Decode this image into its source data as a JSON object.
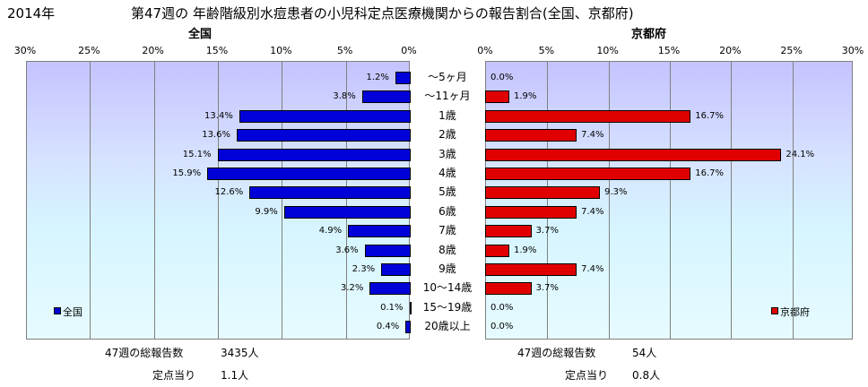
{
  "header": {
    "year": "2014年",
    "title": "第47週の 年齢階級別水痘患者の小児科定点医療機関からの報告割合(全国、京都府)"
  },
  "colors": {
    "national": "#0000d8",
    "kyoto": "#e00000"
  },
  "chart_data": [
    {
      "type": "bar",
      "orientation": "horizontal",
      "direction": "right-to-left",
      "title": "全国",
      "legend": "全国",
      "legend_position": "bottom-left",
      "xlim": [
        0,
        30
      ],
      "xticks": [
        "30%",
        "25%",
        "20%",
        "15%",
        "10%",
        "5%",
        "0%"
      ],
      "categories": [
        "〜5ヶ月",
        "〜11ヶ月",
        "1歳",
        "2歳",
        "3歳",
        "4歳",
        "5歳",
        "6歳",
        "7歳",
        "8歳",
        "9歳",
        "10〜14歳",
        "15〜19歳",
        "20歳以上"
      ],
      "values": [
        1.2,
        3.8,
        13.4,
        13.6,
        15.1,
        15.9,
        12.6,
        9.9,
        4.9,
        3.6,
        2.3,
        3.2,
        0.1,
        0.4
      ],
      "labels": [
        "1.2%",
        "3.8%",
        "13.4%",
        "13.6%",
        "15.1%",
        "15.9%",
        "12.6%",
        "9.9%",
        "4.9%",
        "3.6%",
        "2.3%",
        "3.2%",
        "0.1%",
        "0.4%"
      ],
      "grid": true
    },
    {
      "type": "bar",
      "orientation": "horizontal",
      "direction": "left-to-right",
      "title": "京都府",
      "legend": "京都府",
      "legend_position": "bottom-right",
      "xlim": [
        0,
        30
      ],
      "xticks": [
        "0%",
        "5%",
        "10%",
        "15%",
        "20%",
        "25%",
        "30%"
      ],
      "categories": [
        "〜5ヶ月",
        "〜11ヶ月",
        "1歳",
        "2歳",
        "3歳",
        "4歳",
        "5歳",
        "6歳",
        "7歳",
        "8歳",
        "9歳",
        "10〜14歳",
        "15〜19歳",
        "20歳以上"
      ],
      "values": [
        0.0,
        1.9,
        16.7,
        7.4,
        24.1,
        16.7,
        9.3,
        7.4,
        3.7,
        1.9,
        7.4,
        3.7,
        0.0,
        0.0
      ],
      "labels": [
        "0.0%",
        "1.9%",
        "16.7%",
        "7.4%",
        "24.1%",
        "16.7%",
        "9.3%",
        "7.4%",
        "3.7%",
        "1.9%",
        "7.4%",
        "3.7%",
        "0.0%",
        "0.0%"
      ],
      "grid": true
    }
  ],
  "footer": {
    "national": {
      "total_label": "47週の総報告数",
      "total_value": "3435人",
      "per_label": "定点当り",
      "per_value": "1.1人"
    },
    "kyoto": {
      "total_label": "47週の総報告数",
      "total_value": "54人",
      "per_label": "定点当り",
      "per_value": "0.8人"
    }
  }
}
